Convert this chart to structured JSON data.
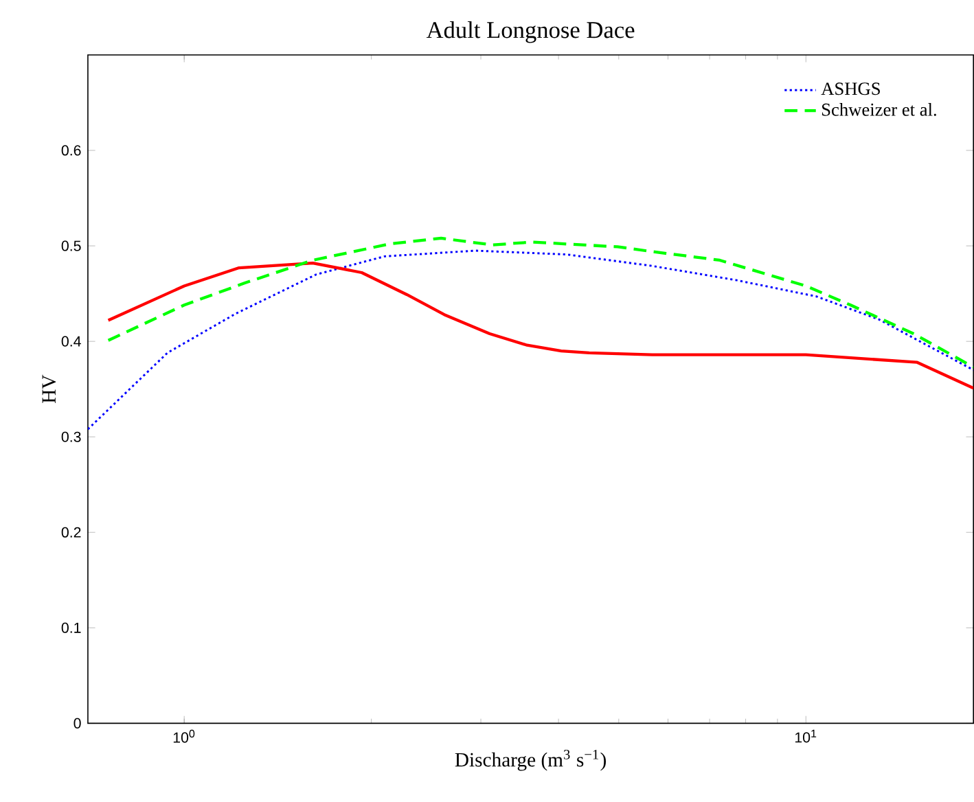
{
  "chart_data": {
    "type": "line",
    "title": "Adult Longnose Dace",
    "xlabel": "Discharge (m$^{3}$ s$^{−1}$)",
    "ylabel": "HV",
    "log": "x",
    "legend": "top right",
    "xlim": [
      0.7,
      18.6
    ],
    "ylim": [
      0,
      0.7
    ],
    "xticks": [
      {
        "value": 1,
        "label": "10$^{0}$"
      },
      {
        "value": 10,
        "label": "10$^{1}$"
      }
    ],
    "yticks": [
      0,
      0.1,
      0.2,
      0.3,
      0.4,
      0.5,
      0.6
    ],
    "series": [
      {
        "name": "ASHGS",
        "color": "#0000ff",
        "line_style": "dotted",
        "x": [
          0.7,
          0.94,
          1.21,
          1.63,
          2.1,
          2.94,
          4.12,
          5.66,
          7.74,
          10.4,
          13.1,
          18.6
        ],
        "values": [
          0.308,
          0.388,
          0.429,
          0.47,
          0.489,
          0.495,
          0.491,
          0.479,
          0.464,
          0.447,
          0.423,
          0.37
        ]
      },
      {
        "color": "#ff0000",
        "line_style": "solid",
        "x": [
          0.755,
          1.0,
          1.225,
          1.61,
          1.93,
          2.28,
          2.62,
          3.1,
          3.56,
          4.04,
          4.48,
          5.66,
          10.0,
          15.1,
          18.6
        ],
        "values": [
          0.422,
          0.458,
          0.477,
          0.482,
          0.472,
          0.449,
          0.428,
          0.408,
          0.396,
          0.39,
          0.388,
          0.386,
          0.386,
          0.378,
          0.351
        ]
      },
      {
        "name": "Schweizer et al.",
        "color": "#00ff00",
        "line_style": "dashed",
        "x": [
          0.755,
          1.0,
          1.25,
          1.61,
          2.14,
          2.59,
          3.13,
          3.63,
          4.98,
          5.66,
          7.27,
          10.0,
          11.8,
          14.9,
          18.6
        ],
        "values": [
          0.401,
          0.438,
          0.461,
          0.485,
          0.502,
          0.508,
          0.501,
          0.504,
          0.499,
          0.494,
          0.485,
          0.458,
          0.438,
          0.408,
          0.373
        ]
      }
    ]
  }
}
